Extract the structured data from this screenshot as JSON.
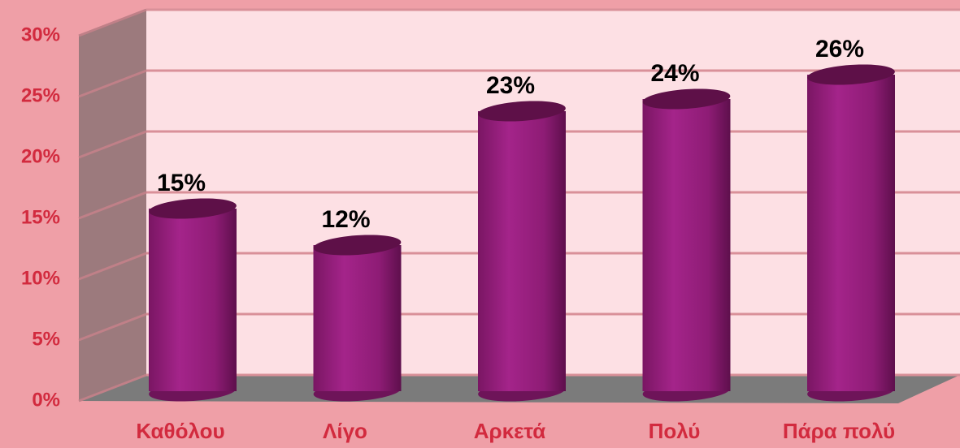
{
  "chart_data": {
    "type": "bar",
    "categories": [
      "Καθόλου",
      "Λίγο",
      "Αρκετά",
      "Πολύ",
      "Πάρα πολύ"
    ],
    "values": [
      15,
      12,
      23,
      24,
      26
    ],
    "value_labels": [
      "15%",
      "12%",
      "23%",
      "24%",
      "26%"
    ],
    "color": "#9b1f7f",
    "ylim": [
      0,
      30
    ],
    "yticks": [
      {
        "value": 0,
        "label": "0%"
      },
      {
        "value": 5,
        "label": "5%"
      },
      {
        "value": 10,
        "label": "10%"
      },
      {
        "value": 15,
        "label": "15%"
      },
      {
        "value": 20,
        "label": "20%"
      },
      {
        "value": 25,
        "label": "25%"
      },
      {
        "value": 30,
        "label": "30%"
      }
    ],
    "grid": true
  }
}
